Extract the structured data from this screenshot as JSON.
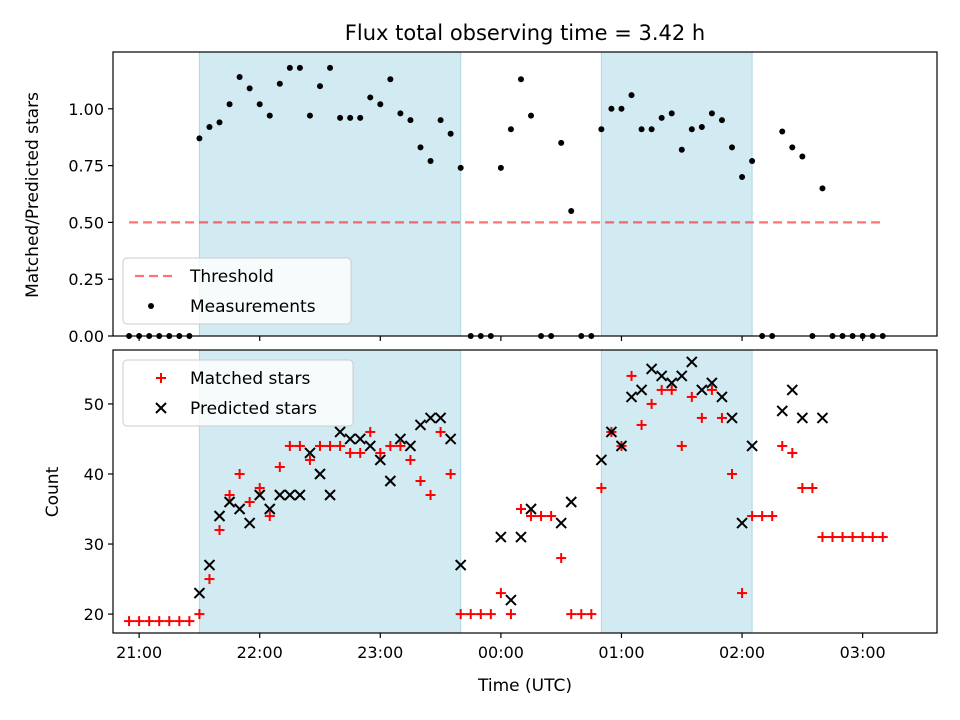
{
  "title": "Flux total observing time = 3.42 h",
  "colors": {
    "shade": "#add8e6",
    "threshold": "#ff0000",
    "measurement": "#000000",
    "matched": "#ff0000",
    "predicted": "#000000"
  },
  "chart_data": [
    {
      "type": "scatter",
      "panel": "top",
      "ylabel": "Matched/Predicted stars",
      "xlabel": "",
      "ylim": [
        0.0,
        1.25
      ],
      "yticks": [
        "0.00",
        "0.25",
        "0.50",
        "0.75",
        "1.00"
      ],
      "xlim": [
        "20:47",
        "03:37"
      ],
      "xticks": [
        "21:00",
        "22:00",
        "23:00",
        "00:00",
        "01:00",
        "02:00",
        "03:00"
      ],
      "shaded_regions": [
        [
          "21:30",
          "23:40"
        ],
        [
          "00:50",
          "02:05"
        ]
      ],
      "legend_position": "lower left",
      "legend": [
        "Threshold",
        "Measurements"
      ],
      "threshold": {
        "name": "Threshold",
        "value": 0.5,
        "x": [
          "20:55",
          "03:10"
        ]
      },
      "series": [
        {
          "name": "Measurements",
          "points": [
            [
              "20:55",
              0
            ],
            [
              "21:00",
              0
            ],
            [
              "21:05",
              0
            ],
            [
              "21:10",
              0
            ],
            [
              "21:15",
              0
            ],
            [
              "21:20",
              0
            ],
            [
              "21:25",
              0
            ],
            [
              "21:30",
              0.87
            ],
            [
              "21:35",
              0.92
            ],
            [
              "21:40",
              0.94
            ],
            [
              "21:45",
              1.02
            ],
            [
              "21:50",
              1.14
            ],
            [
              "21:55",
              1.09
            ],
            [
              "22:00",
              1.02
            ],
            [
              "22:05",
              0.97
            ],
            [
              "22:10",
              1.11
            ],
            [
              "22:15",
              1.18
            ],
            [
              "22:20",
              1.18
            ],
            [
              "22:25",
              0.97
            ],
            [
              "22:30",
              1.1
            ],
            [
              "22:35",
              1.18
            ],
            [
              "22:40",
              0.96
            ],
            [
              "22:45",
              0.96
            ],
            [
              "22:50",
              0.96
            ],
            [
              "22:55",
              1.05
            ],
            [
              "23:00",
              1.02
            ],
            [
              "23:05",
              1.13
            ],
            [
              "23:10",
              0.98
            ],
            [
              "23:15",
              0.95
            ],
            [
              "23:20",
              0.83
            ],
            [
              "23:25",
              0.77
            ],
            [
              "23:30",
              0.95
            ],
            [
              "23:35",
              0.89
            ],
            [
              "23:40",
              0.74
            ],
            [
              "23:45",
              0
            ],
            [
              "23:50",
              0
            ],
            [
              "23:55",
              0
            ],
            [
              "00:00",
              0.74
            ],
            [
              "00:05",
              0.91
            ],
            [
              "00:10",
              1.13
            ],
            [
              "00:15",
              0.97
            ],
            [
              "00:20",
              0
            ],
            [
              "00:25",
              0
            ],
            [
              "00:30",
              0.85
            ],
            [
              "00:35",
              0.55
            ],
            [
              "00:40",
              0
            ],
            [
              "00:45",
              0
            ],
            [
              "00:50",
              0.91
            ],
            [
              "00:55",
              1.0
            ],
            [
              "01:00",
              1.0
            ],
            [
              "01:05",
              1.06
            ],
            [
              "01:10",
              0.91
            ],
            [
              "01:15",
              0.91
            ],
            [
              "01:20",
              0.96
            ],
            [
              "01:25",
              0.98
            ],
            [
              "01:30",
              0.82
            ],
            [
              "01:35",
              0.91
            ],
            [
              "01:40",
              0.92
            ],
            [
              "01:45",
              0.98
            ],
            [
              "01:50",
              0.95
            ],
            [
              "01:55",
              0.83
            ],
            [
              "02:00",
              0.7
            ],
            [
              "02:05",
              0.77
            ],
            [
              "02:10",
              0
            ],
            [
              "02:15",
              0
            ],
            [
              "02:20",
              0.9
            ],
            [
              "02:25",
              0.83
            ],
            [
              "02:30",
              0.79
            ],
            [
              "02:35",
              0
            ],
            [
              "02:40",
              0.65
            ],
            [
              "02:45",
              0
            ],
            [
              "02:50",
              0
            ],
            [
              "02:55",
              0
            ],
            [
              "03:00",
              0
            ],
            [
              "03:05",
              0
            ],
            [
              "03:10",
              0
            ]
          ]
        }
      ]
    },
    {
      "type": "scatter",
      "panel": "bottom",
      "ylabel": "Count",
      "xlabel": "Time (UTC)",
      "ylim": [
        17.3,
        57.7
      ],
      "yticks": [
        "20",
        "30",
        "40",
        "50"
      ],
      "xlim": [
        "20:47",
        "03:37"
      ],
      "xticks": [
        "21:00",
        "22:00",
        "23:00",
        "00:00",
        "01:00",
        "02:00",
        "03:00"
      ],
      "shaded_regions": [
        [
          "21:30",
          "23:40"
        ],
        [
          "00:50",
          "02:05"
        ]
      ],
      "legend_position": "upper left",
      "legend": [
        "Matched stars",
        "Predicted stars"
      ],
      "series": [
        {
          "name": "Matched stars",
          "marker": "+",
          "points": [
            [
              "20:55",
              19
            ],
            [
              "21:00",
              19
            ],
            [
              "21:05",
              19
            ],
            [
              "21:10",
              19
            ],
            [
              "21:15",
              19
            ],
            [
              "21:20",
              19
            ],
            [
              "21:25",
              19
            ],
            [
              "21:30",
              20
            ],
            [
              "21:35",
              25
            ],
            [
              "21:40",
              32
            ],
            [
              "21:45",
              37
            ],
            [
              "21:50",
              40
            ],
            [
              "21:55",
              36
            ],
            [
              "22:00",
              38
            ],
            [
              "22:05",
              34
            ],
            [
              "22:10",
              41
            ],
            [
              "22:15",
              44
            ],
            [
              "22:20",
              44
            ],
            [
              "22:25",
              42
            ],
            [
              "22:30",
              44
            ],
            [
              "22:35",
              44
            ],
            [
              "22:40",
              44
            ],
            [
              "22:45",
              43
            ],
            [
              "22:50",
              43
            ],
            [
              "22:55",
              46
            ],
            [
              "23:00",
              43
            ],
            [
              "23:05",
              44
            ],
            [
              "23:10",
              44
            ],
            [
              "23:15",
              42
            ],
            [
              "23:20",
              39
            ],
            [
              "23:25",
              37
            ],
            [
              "23:30",
              46
            ],
            [
              "23:35",
              40
            ],
            [
              "23:40",
              20
            ],
            [
              "23:45",
              20
            ],
            [
              "23:50",
              20
            ],
            [
              "23:55",
              20
            ],
            [
              "00:00",
              23
            ],
            [
              "00:05",
              20
            ],
            [
              "00:10",
              35
            ],
            [
              "00:15",
              34
            ],
            [
              "00:20",
              34
            ],
            [
              "00:25",
              34
            ],
            [
              "00:30",
              28
            ],
            [
              "00:35",
              20
            ],
            [
              "00:40",
              20
            ],
            [
              "00:45",
              20
            ],
            [
              "00:50",
              38
            ],
            [
              "00:55",
              46
            ],
            [
              "01:00",
              44
            ],
            [
              "01:05",
              54
            ],
            [
              "01:10",
              47
            ],
            [
              "01:15",
              50
            ],
            [
              "01:20",
              52
            ],
            [
              "01:25",
              52
            ],
            [
              "01:30",
              44
            ],
            [
              "01:35",
              51
            ],
            [
              "01:40",
              48
            ],
            [
              "01:45",
              52
            ],
            [
              "01:50",
              48
            ],
            [
              "01:55",
              40
            ],
            [
              "02:00",
              23
            ],
            [
              "02:05",
              34
            ],
            [
              "02:10",
              34
            ],
            [
              "02:15",
              34
            ],
            [
              "02:20",
              44
            ],
            [
              "02:25",
              43
            ],
            [
              "02:30",
              38
            ],
            [
              "02:35",
              38
            ],
            [
              "02:40",
              31
            ],
            [
              "02:45",
              31
            ],
            [
              "02:50",
              31
            ],
            [
              "02:55",
              31
            ],
            [
              "03:00",
              31
            ],
            [
              "03:05",
              31
            ],
            [
              "03:10",
              31
            ]
          ]
        },
        {
          "name": "Predicted stars",
          "marker": "x",
          "points": [
            [
              "21:30",
              23
            ],
            [
              "21:35",
              27
            ],
            [
              "21:40",
              34
            ],
            [
              "21:45",
              36
            ],
            [
              "21:50",
              35
            ],
            [
              "21:55",
              33
            ],
            [
              "22:00",
              37
            ],
            [
              "22:05",
              35
            ],
            [
              "22:10",
              37
            ],
            [
              "22:15",
              37
            ],
            [
              "22:20",
              37
            ],
            [
              "22:25",
              43
            ],
            [
              "22:30",
              40
            ],
            [
              "22:35",
              37
            ],
            [
              "22:40",
              46
            ],
            [
              "22:45",
              45
            ],
            [
              "22:50",
              45
            ],
            [
              "22:55",
              44
            ],
            [
              "23:00",
              42
            ],
            [
              "23:05",
              39
            ],
            [
              "23:10",
              45
            ],
            [
              "23:15",
              44
            ],
            [
              "23:20",
              47
            ],
            [
              "23:25",
              48
            ],
            [
              "23:30",
              48
            ],
            [
              "23:35",
              45
            ],
            [
              "23:40",
              27
            ],
            [
              "00:00",
              31
            ],
            [
              "00:05",
              22
            ],
            [
              "00:10",
              31
            ],
            [
              "00:15",
              35
            ],
            [
              "00:30",
              33
            ],
            [
              "00:35",
              36
            ],
            [
              "00:50",
              42
            ],
            [
              "00:55",
              46
            ],
            [
              "01:00",
              44
            ],
            [
              "01:05",
              51
            ],
            [
              "01:10",
              52
            ],
            [
              "01:15",
              55
            ],
            [
              "01:20",
              54
            ],
            [
              "01:25",
              53
            ],
            [
              "01:30",
              54
            ],
            [
              "01:35",
              56
            ],
            [
              "01:40",
              52
            ],
            [
              "01:45",
              53
            ],
            [
              "01:50",
              51
            ],
            [
              "01:55",
              48
            ],
            [
              "02:00",
              33
            ],
            [
              "02:05",
              44
            ],
            [
              "02:20",
              49
            ],
            [
              "02:25",
              52
            ],
            [
              "02:30",
              48
            ],
            [
              "02:40",
              48
            ]
          ]
        }
      ]
    }
  ]
}
